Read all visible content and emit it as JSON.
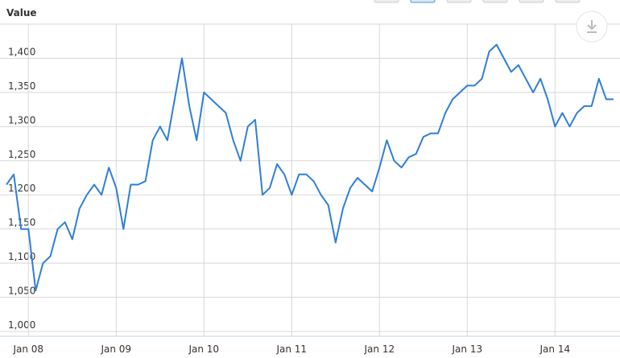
{
  "chart_data": {
    "type": "line",
    "title": "Value",
    "x": [
      "2007-10",
      "2007-11",
      "2007-12",
      "2008-01",
      "2008-02",
      "2008-03",
      "2008-04",
      "2008-05",
      "2008-06",
      "2008-07",
      "2008-08",
      "2008-09",
      "2008-10",
      "2008-11",
      "2008-12",
      "2009-01",
      "2009-02",
      "2009-03",
      "2009-04",
      "2009-05",
      "2009-06",
      "2009-07",
      "2009-08",
      "2009-09",
      "2009-10",
      "2009-11",
      "2009-12",
      "2010-01",
      "2010-02",
      "2010-03",
      "2010-04",
      "2010-05",
      "2010-06",
      "2010-07",
      "2010-08",
      "2010-09",
      "2010-10",
      "2010-11",
      "2010-12",
      "2011-01",
      "2011-02",
      "2011-03",
      "2011-04",
      "2011-05",
      "2011-06",
      "2011-07",
      "2011-08",
      "2011-09",
      "2011-10",
      "2011-11",
      "2011-12",
      "2012-01",
      "2012-02",
      "2012-03",
      "2012-04",
      "2012-05",
      "2012-06",
      "2012-07",
      "2012-08",
      "2012-09",
      "2012-10",
      "2012-11",
      "2012-12",
      "2013-01",
      "2013-02",
      "2013-03",
      "2013-04",
      "2013-05",
      "2013-06",
      "2013-07",
      "2013-08",
      "2013-09",
      "2013-10",
      "2013-11",
      "2013-12",
      "2014-01",
      "2014-02",
      "2014-03",
      "2014-04",
      "2014-05",
      "2014-06",
      "2014-07",
      "2014-08",
      "2014-09"
    ],
    "values": [
      1215,
      1230,
      1150,
      1150,
      1060,
      1100,
      1110,
      1150,
      1160,
      1135,
      1180,
      1200,
      1215,
      1200,
      1240,
      1210,
      1150,
      1215,
      1215,
      1220,
      1280,
      1300,
      1280,
      1340,
      1400,
      1330,
      1280,
      1350,
      1340,
      1330,
      1320,
      1280,
      1250,
      1300,
      1310,
      1200,
      1210,
      1245,
      1230,
      1200,
      1230,
      1230,
      1220,
      1200,
      1185,
      1130,
      1180,
      1210,
      1225,
      1215,
      1205,
      1240,
      1280,
      1250,
      1240,
      1255,
      1260,
      1285,
      1290,
      1290,
      1320,
      1340,
      1350,
      1360,
      1360,
      1370,
      1410,
      1420,
      1400,
      1380,
      1390,
      1370,
      1350,
      1370,
      1340,
      1300,
      1320,
      1300,
      1320,
      1330,
      1330,
      1370,
      1340,
      1340
    ],
    "color": "#2f7ed8",
    "xlim": [
      "2007-10",
      "2014-09"
    ],
    "xticks": [
      {
        "value": "2008-01",
        "label": "Jan 08"
      },
      {
        "value": "2009-01",
        "label": "Jan 09"
      },
      {
        "value": "2010-01",
        "label": "Jan 10"
      },
      {
        "value": "2011-01",
        "label": "Jan 11"
      },
      {
        "value": "2012-01",
        "label": "Jan 12"
      },
      {
        "value": "2013-01",
        "label": "Jan 13"
      },
      {
        "value": "2014-01",
        "label": "Jan 14"
      }
    ],
    "ylim": [
      1000,
      1450
    ],
    "yticks": [
      {
        "value": 1000,
        "label": "1,000"
      },
      {
        "value": 1050,
        "label": "1,050"
      },
      {
        "value": 1100,
        "label": "1,100"
      },
      {
        "value": 1150,
        "label": "1,150"
      },
      {
        "value": 1200,
        "label": "1,200"
      },
      {
        "value": 1250,
        "label": "1,250"
      },
      {
        "value": 1300,
        "label": "1,300"
      },
      {
        "value": 1350,
        "label": "1,350"
      },
      {
        "value": 1400,
        "label": "1,400"
      }
    ],
    "grid": true
  }
}
